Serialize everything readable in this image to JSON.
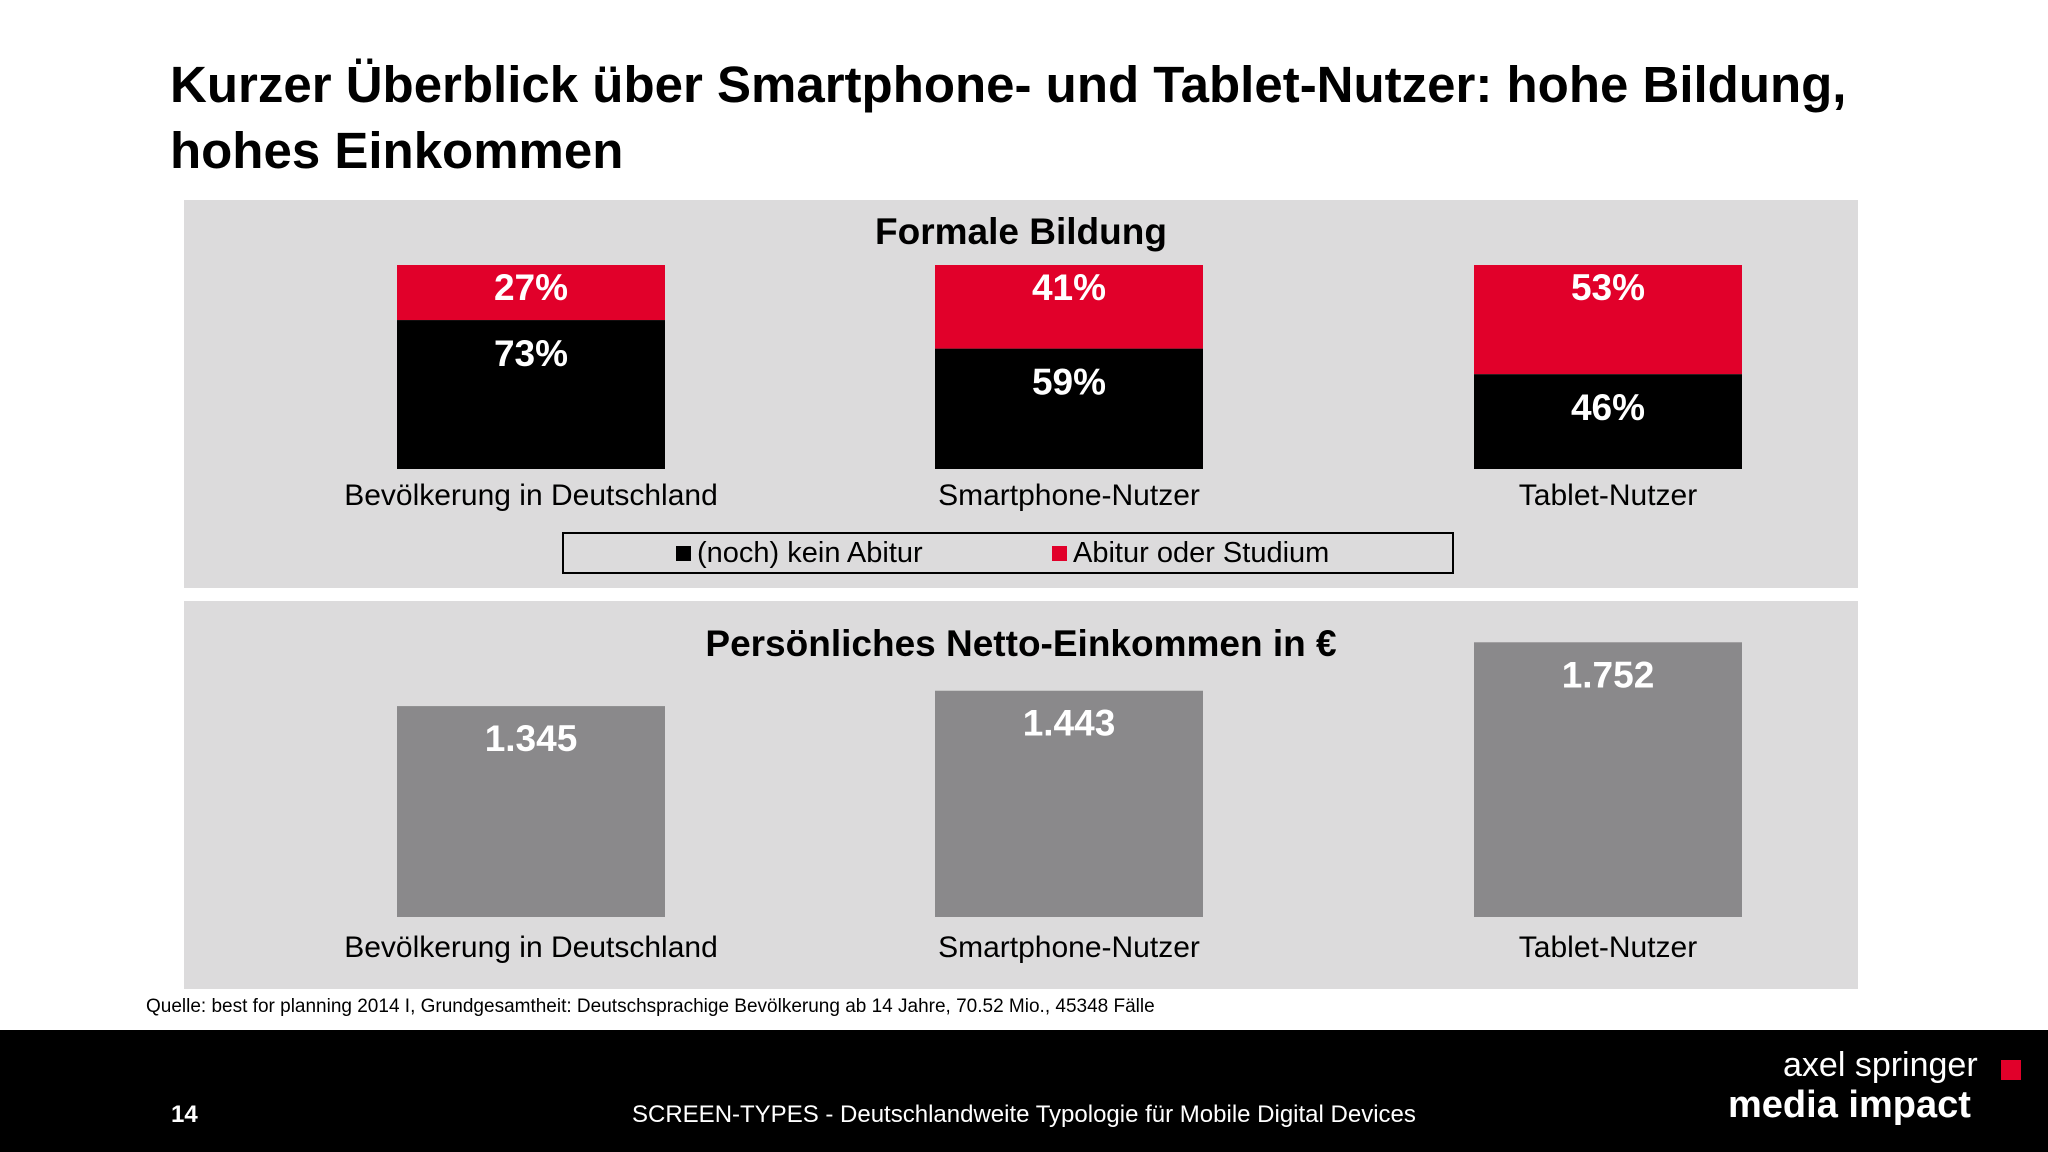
{
  "title": "Kurzer Überblick über Smartphone- und Tablet-Nutzer: hohe Bildung, hohes Einkommen",
  "colors": {
    "black": "#000000",
    "red": "#e1002a",
    "grey": "#8a898b",
    "panel": "#dcdbdc"
  },
  "chart_data": [
    {
      "type": "bar",
      "stacked": true,
      "title": "Formale Bildung",
      "categories": [
        "Bevölkerung in Deutschland",
        "Smartphone-Nutzer",
        "Tablet-Nutzer"
      ],
      "series": [
        {
          "name": "(noch) kein Abitur",
          "values": [
            73,
            59,
            46
          ],
          "labels": [
            "73%",
            "59%",
            "46%"
          ]
        },
        {
          "name": "Abitur oder Studium",
          "values": [
            27,
            41,
            53
          ],
          "labels": [
            "27%",
            "41%",
            "53%"
          ]
        }
      ],
      "legend": "bottom",
      "grid": false
    },
    {
      "type": "bar",
      "title": "Persönliches Netto-Einkommen in €",
      "categories": [
        "Bevölkerung in Deutschland",
        "Smartphone-Nutzer",
        "Tablet-Nutzer"
      ],
      "values": [
        1345,
        1443,
        1752
      ],
      "labels": [
        "1.345",
        "1.443",
        "1.752"
      ],
      "grid": false
    }
  ],
  "source": "Quelle: best for planning 2014 I, Grundgesamtheit: Deutschsprachige Bevölkerung ab 14 Jahre, 70.52 Mio., 45348 Fälle",
  "footer": {
    "page_number": "14",
    "text": "SCREEN-TYPES - Deutschlandweite Typologie für Mobile Digital Devices",
    "logo_line1": "axel springer",
    "logo_line2": "media impact"
  }
}
